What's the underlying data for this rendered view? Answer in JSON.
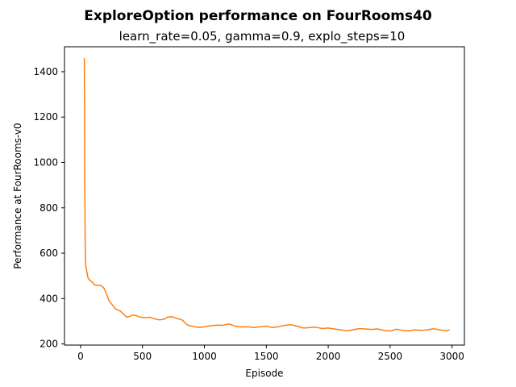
{
  "chart_data": {
    "type": "line",
    "title": "ExploreOption performance on FourRooms40",
    "subtitle": "learn_rate=0.05, gamma=0.9, explo_steps=10",
    "xlabel": "Episode",
    "ylabel": "Performance at FourRooms-v0",
    "xlim": [
      -130,
      3100
    ],
    "ylim": [
      195,
      1510
    ],
    "xticks": [
      0,
      500,
      1000,
      1500,
      2000,
      2500,
      3000
    ],
    "yticks": [
      200,
      400,
      600,
      800,
      1000,
      1200,
      1400
    ],
    "grid": false,
    "legend": "none",
    "series": [
      {
        "color": "#ff7f0e",
        "points": [
          [
            30,
            1460
          ],
          [
            32,
            1200
          ],
          [
            34,
            900
          ],
          [
            36,
            700
          ],
          [
            38,
            600
          ],
          [
            42,
            545
          ],
          [
            50,
            520
          ],
          [
            60,
            490
          ],
          [
            80,
            478
          ],
          [
            100,
            470
          ],
          [
            110,
            460
          ],
          [
            150,
            458
          ],
          [
            170,
            456
          ],
          [
            190,
            445
          ],
          [
            210,
            420
          ],
          [
            230,
            390
          ],
          [
            260,
            370
          ],
          [
            280,
            355
          ],
          [
            320,
            345
          ],
          [
            350,
            330
          ],
          [
            370,
            318
          ],
          [
            400,
            322
          ],
          [
            420,
            328
          ],
          [
            450,
            325
          ],
          [
            480,
            318
          ],
          [
            520,
            316
          ],
          [
            560,
            318
          ],
          [
            600,
            310
          ],
          [
            640,
            306
          ],
          [
            680,
            310
          ],
          [
            700,
            318
          ],
          [
            740,
            320
          ],
          [
            780,
            312
          ],
          [
            820,
            306
          ],
          [
            850,
            290
          ],
          [
            870,
            282
          ],
          [
            920,
            276
          ],
          [
            960,
            272
          ],
          [
            1000,
            276
          ],
          [
            1050,
            280
          ],
          [
            1100,
            283
          ],
          [
            1150,
            282
          ],
          [
            1200,
            288
          ],
          [
            1250,
            278
          ],
          [
            1300,
            275
          ],
          [
            1350,
            276
          ],
          [
            1400,
            272
          ],
          [
            1450,
            276
          ],
          [
            1500,
            278
          ],
          [
            1550,
            272
          ],
          [
            1600,
            276
          ],
          [
            1650,
            282
          ],
          [
            1700,
            285
          ],
          [
            1750,
            278
          ],
          [
            1800,
            270
          ],
          [
            1850,
            272
          ],
          [
            1900,
            274
          ],
          [
            1950,
            268
          ],
          [
            2000,
            270
          ],
          [
            2050,
            266
          ],
          [
            2100,
            262
          ],
          [
            2150,
            258
          ],
          [
            2200,
            262
          ],
          [
            2250,
            268
          ],
          [
            2300,
            266
          ],
          [
            2350,
            264
          ],
          [
            2400,
            266
          ],
          [
            2450,
            260
          ],
          [
            2500,
            257
          ],
          [
            2550,
            265
          ],
          [
            2600,
            260
          ],
          [
            2650,
            258
          ],
          [
            2700,
            262
          ],
          [
            2750,
            260
          ],
          [
            2800,
            262
          ],
          [
            2850,
            267
          ],
          [
            2900,
            262
          ],
          [
            2950,
            258
          ],
          [
            2980,
            262
          ]
        ]
      }
    ]
  }
}
